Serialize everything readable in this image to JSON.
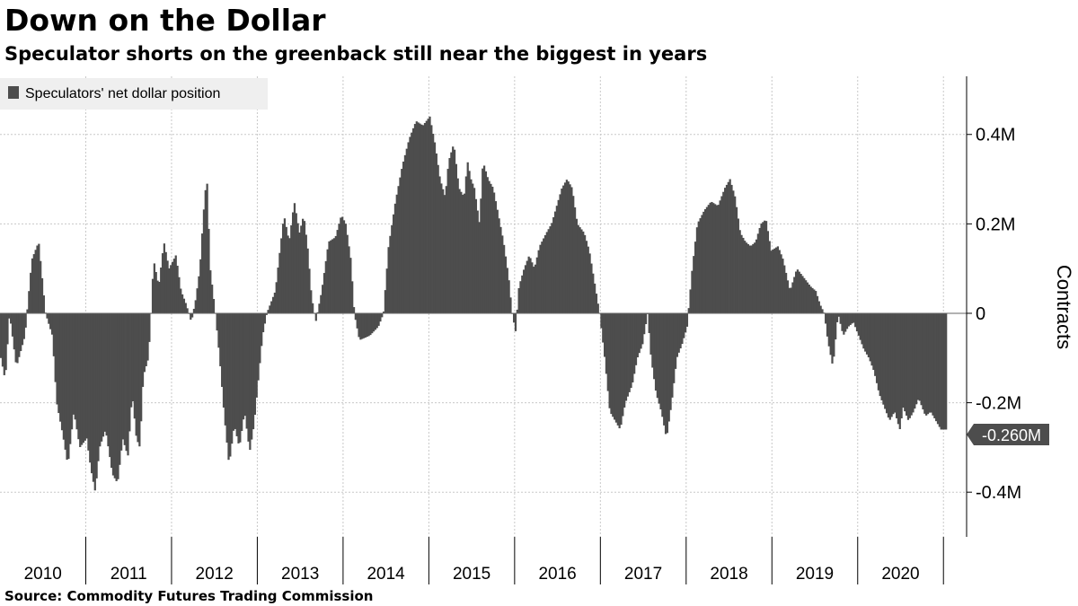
{
  "title": "Down on the Dollar",
  "subtitle": "Speculator shorts on the greenback still near the biggest in years",
  "source": "Source: Commodity Futures Trading Commission",
  "colors": {
    "bar": "#4d4d4d",
    "grid": "#c8c8c8",
    "legend_bg": "#efefef",
    "label_bg": "#4d4d4d"
  },
  "chart_data": {
    "type": "bar",
    "legend_position": "top-left",
    "grid": true,
    "ylabel": "Contracts",
    "ylim": [
      -0.5,
      0.53
    ],
    "y_unit": "million contracts",
    "y_ticks": [
      {
        "value": 0.4,
        "label": "0.4M"
      },
      {
        "value": 0.2,
        "label": "0.2M"
      },
      {
        "value": 0,
        "label": "0"
      },
      {
        "value": -0.2,
        "label": "-0.2M"
      },
      {
        "value": -0.4,
        "label": "-0.4M"
      }
    ],
    "x_labels": [
      "2010",
      "2011",
      "2012",
      "2013",
      "2014",
      "2015",
      "2016",
      "2017",
      "2018",
      "2019",
      "2020"
    ],
    "x_range": [
      2010.0,
      2021.05
    ],
    "last_value_label": "-0.260M",
    "last_value": -0.26,
    "series": [
      {
        "name": "Speculators' net dollar position",
        "anchors": [
          [
            2010.0,
            -0.1
          ],
          [
            2010.05,
            -0.15
          ],
          [
            2010.1,
            0.0
          ],
          [
            2010.18,
            -0.12
          ],
          [
            2010.28,
            -0.05
          ],
          [
            2010.36,
            0.12
          ],
          [
            2010.44,
            0.16
          ],
          [
            2010.52,
            0.0
          ],
          [
            2010.6,
            -0.05
          ],
          [
            2010.65,
            -0.2
          ],
          [
            2010.72,
            -0.27
          ],
          [
            2010.78,
            -0.34
          ],
          [
            2010.85,
            -0.22
          ],
          [
            2010.92,
            -0.3
          ],
          [
            2011.0,
            -0.28
          ],
          [
            2011.05,
            -0.35
          ],
          [
            2011.1,
            -0.4
          ],
          [
            2011.15,
            -0.3
          ],
          [
            2011.22,
            -0.26
          ],
          [
            2011.3,
            -0.36
          ],
          [
            2011.36,
            -0.38
          ],
          [
            2011.42,
            -0.28
          ],
          [
            2011.48,
            -0.32
          ],
          [
            2011.53,
            -0.18
          ],
          [
            2011.58,
            -0.28
          ],
          [
            2011.62,
            -0.3
          ],
          [
            2011.66,
            -0.14
          ],
          [
            2011.72,
            -0.1
          ],
          [
            2011.75,
            0.0
          ],
          [
            2011.78,
            0.12
          ],
          [
            2011.84,
            0.06
          ],
          [
            2011.9,
            0.16
          ],
          [
            2011.96,
            0.1
          ],
          [
            2012.04,
            0.13
          ],
          [
            2012.1,
            0.05
          ],
          [
            2012.16,
            0.02
          ],
          [
            2012.22,
            -0.02
          ],
          [
            2012.27,
            0.03
          ],
          [
            2012.32,
            0.1
          ],
          [
            2012.36,
            0.22
          ],
          [
            2012.4,
            0.31
          ],
          [
            2012.44,
            0.1
          ],
          [
            2012.5,
            0.0
          ],
          [
            2012.55,
            -0.1
          ],
          [
            2012.6,
            -0.22
          ],
          [
            2012.66,
            -0.34
          ],
          [
            2012.72,
            -0.25
          ],
          [
            2012.78,
            -0.3
          ],
          [
            2012.84,
            -0.22
          ],
          [
            2012.9,
            -0.31
          ],
          [
            2012.95,
            -0.25
          ],
          [
            2013.0,
            -0.15
          ],
          [
            2013.05,
            -0.05
          ],
          [
            2013.1,
            0.0
          ],
          [
            2013.2,
            0.05
          ],
          [
            2013.3,
            0.22
          ],
          [
            2013.36,
            0.16
          ],
          [
            2013.42,
            0.25
          ],
          [
            2013.48,
            0.18
          ],
          [
            2013.53,
            0.22
          ],
          [
            2013.58,
            0.14
          ],
          [
            2013.62,
            0.04
          ],
          [
            2013.67,
            -0.02
          ],
          [
            2013.74,
            0.05
          ],
          [
            2013.82,
            0.16
          ],
          [
            2013.9,
            0.17
          ],
          [
            2013.97,
            0.22
          ],
          [
            2014.02,
            0.2
          ],
          [
            2014.08,
            0.12
          ],
          [
            2014.12,
            0.0
          ],
          [
            2014.18,
            -0.06
          ],
          [
            2014.3,
            -0.05
          ],
          [
            2014.4,
            -0.03
          ],
          [
            2014.46,
            0.0
          ],
          [
            2014.52,
            0.15
          ],
          [
            2014.6,
            0.25
          ],
          [
            2014.68,
            0.33
          ],
          [
            2014.76,
            0.39
          ],
          [
            2014.84,
            0.43
          ],
          [
            2014.92,
            0.42
          ],
          [
            2015.0,
            0.44
          ],
          [
            2015.06,
            0.38
          ],
          [
            2015.12,
            0.3
          ],
          [
            2015.18,
            0.26
          ],
          [
            2015.22,
            0.34
          ],
          [
            2015.28,
            0.38
          ],
          [
            2015.34,
            0.28
          ],
          [
            2015.4,
            0.26
          ],
          [
            2015.44,
            0.34
          ],
          [
            2015.48,
            0.3
          ],
          [
            2015.52,
            0.28
          ],
          [
            2015.58,
            0.2
          ],
          [
            2015.62,
            0.34
          ],
          [
            2015.68,
            0.3
          ],
          [
            2015.74,
            0.28
          ],
          [
            2015.8,
            0.22
          ],
          [
            2015.86,
            0.16
          ],
          [
            2015.92,
            0.08
          ],
          [
            2015.96,
            0.0
          ],
          [
            2016.0,
            -0.04
          ],
          [
            2016.04,
            0.06
          ],
          [
            2016.1,
            0.1
          ],
          [
            2016.16,
            0.13
          ],
          [
            2016.22,
            0.1
          ],
          [
            2016.28,
            0.15
          ],
          [
            2016.36,
            0.18
          ],
          [
            2016.42,
            0.2
          ],
          [
            2016.48,
            0.24
          ],
          [
            2016.54,
            0.28
          ],
          [
            2016.6,
            0.3
          ],
          [
            2016.66,
            0.28
          ],
          [
            2016.72,
            0.2
          ],
          [
            2016.8,
            0.18
          ],
          [
            2016.86,
            0.14
          ],
          [
            2016.92,
            0.07
          ],
          [
            2016.98,
            0.0
          ],
          [
            2017.04,
            -0.1
          ],
          [
            2017.1,
            -0.22
          ],
          [
            2017.16,
            -0.24
          ],
          [
            2017.22,
            -0.26
          ],
          [
            2017.28,
            -0.2
          ],
          [
            2017.36,
            -0.16
          ],
          [
            2017.42,
            -0.1
          ],
          [
            2017.48,
            -0.07
          ],
          [
            2017.54,
            0.0
          ],
          [
            2017.58,
            -0.1
          ],
          [
            2017.64,
            -0.18
          ],
          [
            2017.7,
            -0.22
          ],
          [
            2017.76,
            -0.28
          ],
          [
            2017.82,
            -0.2
          ],
          [
            2017.88,
            -0.1
          ],
          [
            2017.94,
            -0.07
          ],
          [
            2018.0,
            -0.03
          ],
          [
            2018.06,
            0.1
          ],
          [
            2018.12,
            0.2
          ],
          [
            2018.2,
            0.23
          ],
          [
            2018.28,
            0.25
          ],
          [
            2018.36,
            0.24
          ],
          [
            2018.44,
            0.28
          ],
          [
            2018.5,
            0.3
          ],
          [
            2018.56,
            0.26
          ],
          [
            2018.62,
            0.18
          ],
          [
            2018.68,
            0.16
          ],
          [
            2018.74,
            0.15
          ],
          [
            2018.8,
            0.16
          ],
          [
            2018.86,
            0.2
          ],
          [
            2018.92,
            0.21
          ],
          [
            2018.98,
            0.14
          ],
          [
            2019.06,
            0.15
          ],
          [
            2019.12,
            0.12
          ],
          [
            2019.2,
            0.05
          ],
          [
            2019.28,
            0.1
          ],
          [
            2019.36,
            0.08
          ],
          [
            2019.44,
            0.06
          ],
          [
            2019.5,
            0.05
          ],
          [
            2019.55,
            0.02
          ],
          [
            2019.6,
            0.0
          ],
          [
            2019.64,
            -0.06
          ],
          [
            2019.7,
            -0.12
          ],
          [
            2019.76,
            0.0
          ],
          [
            2019.82,
            -0.05
          ],
          [
            2019.88,
            -0.03
          ],
          [
            2019.94,
            -0.02
          ],
          [
            2020.0,
            -0.05
          ],
          [
            2020.06,
            -0.08
          ],
          [
            2020.12,
            -0.1
          ],
          [
            2020.18,
            -0.13
          ],
          [
            2020.24,
            -0.18
          ],
          [
            2020.3,
            -0.21
          ],
          [
            2020.36,
            -0.24
          ],
          [
            2020.42,
            -0.22
          ],
          [
            2020.48,
            -0.26
          ],
          [
            2020.52,
            -0.21
          ],
          [
            2020.58,
            -0.24
          ],
          [
            2020.64,
            -0.22
          ],
          [
            2020.7,
            -0.19
          ],
          [
            2020.78,
            -0.23
          ],
          [
            2020.84,
            -0.22
          ],
          [
            2020.9,
            -0.24
          ],
          [
            2020.96,
            -0.26
          ],
          [
            2021.0,
            -0.26
          ],
          [
            2021.02,
            -0.26
          ]
        ]
      }
    ]
  }
}
